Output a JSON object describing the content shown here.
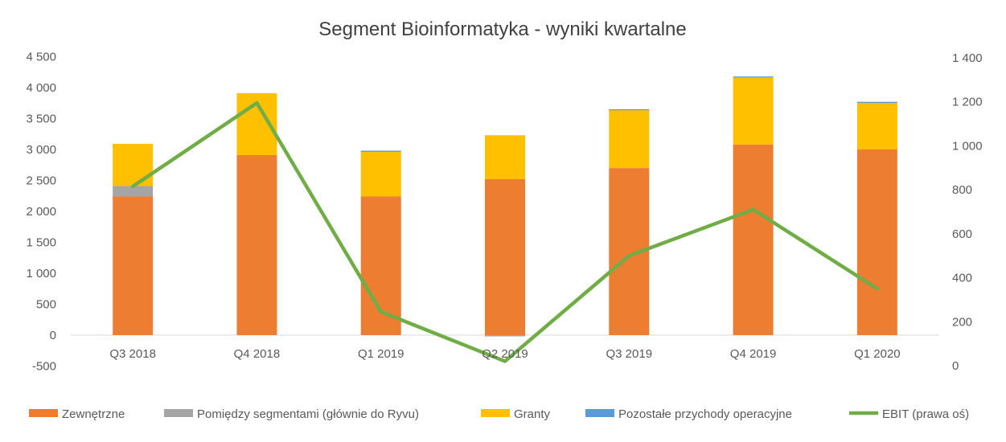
{
  "chart_data": {
    "type": "bar",
    "stacked": true,
    "title": "Segment Bioinformatyka - wyniki kwartalne",
    "categories": [
      "Q3 2018",
      "Q4 2018",
      "Q1 2019",
      "Q2 2019",
      "Q3 2019",
      "Q4 2019",
      "Q1 2020"
    ],
    "series": [
      {
        "name": "Zewnętrzne",
        "color": "#ED7D31",
        "values": [
          2240,
          2910,
          2240,
          2520,
          2700,
          3080,
          3000
        ]
      },
      {
        "name": "Pomiędzy segmentami (głównie do Ryvu)",
        "color": "#A5A5A5",
        "values": [
          170,
          0,
          0,
          -20,
          0,
          0,
          0
        ]
      },
      {
        "name": "Granty",
        "color": "#FFC000",
        "values": [
          680,
          1000,
          720,
          710,
          940,
          1090,
          750
        ]
      },
      {
        "name": "Pozostałe przychody operacyjne",
        "color": "#5B9BD5",
        "values": [
          0,
          0,
          20,
          0,
          10,
          10,
          20
        ]
      }
    ],
    "line_series": {
      "name": "EBIT (prawa oś)",
      "color": "#70AD47",
      "axis": "right",
      "values": [
        815,
        1195,
        245,
        20,
        500,
        710,
        350
      ]
    },
    "y_left": {
      "min": -500,
      "max": 4500,
      "ticks": [
        -500,
        0,
        500,
        1000,
        1500,
        2000,
        2500,
        3000,
        3500,
        4000,
        4500
      ],
      "tick_labels": [
        "-500",
        "0",
        "500",
        "1 000",
        "1 500",
        "2 000",
        "2 500",
        "3 000",
        "3 500",
        "4 000",
        "4 500"
      ]
    },
    "y_right": {
      "min": 0,
      "max": 1400,
      "ticks": [
        0,
        200,
        400,
        600,
        800,
        1000,
        1200,
        1400
      ],
      "tick_labels": [
        "0",
        "200",
        "400",
        "600",
        "800",
        "1 000",
        "1 200",
        "1 400"
      ]
    },
    "grid": false,
    "legend_position": "bottom"
  }
}
